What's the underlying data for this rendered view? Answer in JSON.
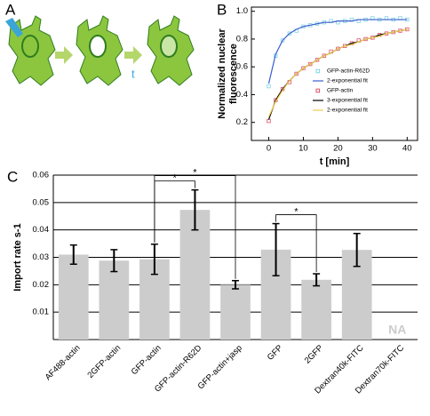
{
  "panel_labels": [
    "A",
    "B",
    "C"
  ],
  "diagram": {
    "time_label": "t"
  },
  "chart_data": [
    {
      "type": "line",
      "xlabel": "t [min]",
      "ylabel": [
        "Normalized nuclear",
        "fluorescence"
      ],
      "x": [
        0,
        2,
        4,
        6,
        8,
        10,
        12,
        14,
        16,
        18,
        20,
        22,
        24,
        26,
        28,
        30,
        32,
        34,
        36,
        38,
        40
      ],
      "xlim": [
        -5,
        43
      ],
      "xticks": [
        0,
        10,
        20,
        30,
        40
      ],
      "ylim": [
        0.07,
        1.03
      ],
      "yticks": [
        0.2,
        0.4,
        0.6,
        0.8,
        {
          "value": 1,
          "label": "1.0"
        }
      ],
      "series": [
        {
          "name": "GFP-actin-R62D",
          "color": "#7fd3e6",
          "mode": "markers",
          "values": [
            0.46,
            0.68,
            0.79,
            0.84,
            0.86,
            0.89,
            0.9,
            0.91,
            0.92,
            0.93,
            0.92,
            0.93,
            0.94,
            0.93,
            0.94,
            0.95,
            0.94,
            0.95,
            0.94,
            0.95,
            0.94
          ]
        },
        {
          "name": "2-exponential fit",
          "color": "#3a5fcd",
          "mode": "line",
          "values": [
            0.48,
            0.69,
            0.79,
            0.84,
            0.87,
            0.89,
            0.9,
            0.91,
            0.92,
            0.92,
            0.93,
            0.93,
            0.93,
            0.94,
            0.94,
            0.94,
            0.94,
            0.94,
            0.94,
            0.94,
            0.94
          ]
        },
        {
          "name": "GFP-actin",
          "color": "#e0506a",
          "mode": "markers",
          "values": [
            0.21,
            0.36,
            0.44,
            0.49,
            0.55,
            0.59,
            0.62,
            0.65,
            0.68,
            0.71,
            0.73,
            0.75,
            0.77,
            0.79,
            0.8,
            0.81,
            0.83,
            0.84,
            0.85,
            0.86,
            0.87
          ]
        },
        {
          "name": "3-exponential fit",
          "color": "#000000",
          "mode": "line",
          "values": [
            0.22,
            0.36,
            0.44,
            0.5,
            0.55,
            0.59,
            0.62,
            0.65,
            0.68,
            0.7,
            0.73,
            0.75,
            0.77,
            0.78,
            0.8,
            0.81,
            0.83,
            0.84,
            0.85,
            0.86,
            0.87
          ]
        },
        {
          "name": "2-exponential fit",
          "color": "#f2c94c",
          "mode": "line",
          "values": [
            0.24,
            0.35,
            0.43,
            0.5,
            0.55,
            0.59,
            0.62,
            0.65,
            0.68,
            0.7,
            0.73,
            0.75,
            0.76,
            0.78,
            0.8,
            0.81,
            0.82,
            0.84,
            0.85,
            0.86,
            0.87
          ]
        }
      ]
    },
    {
      "type": "bar",
      "ylabel": "Import rate s-1",
      "categories": [
        "AF488-actin",
        "2GFP-actin",
        "GFP-actin",
        "GFP-actin-R62D",
        "GFP-actin+jasp",
        "GFP",
        "2GFP",
        "Dextran40k-FITC",
        "Dextran70k-FITC"
      ],
      "values": [
        0.031,
        0.0288,
        0.0293,
        0.0473,
        0.02,
        0.0328,
        0.0218,
        0.0327,
        null
      ],
      "errors": [
        0.0035,
        0.004,
        0.0055,
        0.0073,
        0.0015,
        0.0095,
        0.0022,
        0.006,
        null
      ],
      "color": "#cccccc",
      "ylim": [
        0,
        0.06
      ],
      "yticks": [
        0.01,
        0.02,
        0.03,
        0.04,
        0.05,
        0.06
      ],
      "grid": true,
      "missing_label": "NA",
      "significance": [
        {
          "pair": [
            2,
            3
          ],
          "label": "*"
        },
        {
          "pair": [
            2,
            4
          ],
          "label": "*"
        },
        {
          "pair": [
            5,
            6
          ],
          "label": "*"
        }
      ]
    }
  ]
}
